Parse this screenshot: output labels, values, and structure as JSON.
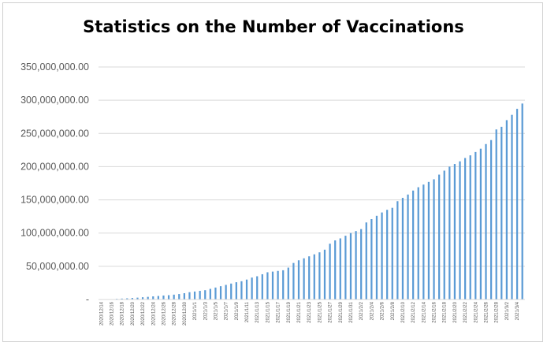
{
  "chart_data": {
    "type": "bar",
    "title": "Statistics on the Number of Vaccinations",
    "xlabel": "",
    "ylabel": "",
    "ylim": [
      0,
      350000000
    ],
    "yticks": [
      0,
      50000000,
      100000000,
      150000000,
      200000000,
      250000000,
      300000000,
      350000000
    ],
    "ytick_labels": [
      "-",
      "50,000,000.00",
      "100,000,000.00",
      "150,000,000.00",
      "200,000,000.00",
      "250,000,000.00",
      "300,000,000.00",
      "350,000,000.00"
    ],
    "grid": "horizontal",
    "legend": "none",
    "bar_color": "#5b9bd5",
    "categories": [
      "2020/12/14",
      "2020/12/15",
      "2020/12/16",
      "2020/12/17",
      "2020/12/18",
      "2020/12/19",
      "2020/12/20",
      "2020/12/21",
      "2020/12/22",
      "2020/12/23",
      "2020/12/24",
      "2020/12/25",
      "2020/12/26",
      "2020/12/27",
      "2020/12/28",
      "2020/12/29",
      "2020/12/30",
      "2020/12/31",
      "2021/1/1",
      "2021/1/2",
      "2021/1/3",
      "2021/1/4",
      "2021/1/5",
      "2021/1/6",
      "2021/1/7",
      "2021/1/8",
      "2021/1/9",
      "2021/1/10",
      "2021/1/11",
      "2021/1/12",
      "2021/1/13",
      "2021/1/14",
      "2021/1/15",
      "2021/1/16",
      "2021/1/17",
      "2021/1/18",
      "2021/1/19",
      "2021/1/20",
      "2021/1/21",
      "2021/1/22",
      "2021/1/23",
      "2021/1/24",
      "2021/1/25",
      "2021/1/26",
      "2021/1/27",
      "2021/1/28",
      "2021/1/29",
      "2021/1/30",
      "2021/1/31",
      "2021/2/1",
      "2021/2/2",
      "2021/2/3",
      "2021/2/4",
      "2021/2/5",
      "2021/2/6",
      "2021/2/7",
      "2021/2/8",
      "2021/2/9",
      "2021/2/10",
      "2021/2/11",
      "2021/2/12",
      "2021/2/13",
      "2021/2/14",
      "2021/2/15",
      "2021/2/16",
      "2021/2/17",
      "2021/2/18",
      "2021/2/19",
      "2021/2/20",
      "2021/2/21",
      "2021/2/22",
      "2021/2/23",
      "2021/2/24",
      "2021/2/25",
      "2021/2/26",
      "2021/2/27",
      "2021/2/28",
      "2021/3/1",
      "2021/3/2",
      "2021/3/3",
      "2021/3/4",
      "2021/3/5"
    ],
    "tick_labels": [
      "2020/12/14",
      "2020/12/16",
      "2020/12/18",
      "2020/12/20",
      "2020/12/22",
      "2020/12/24",
      "2020/12/26",
      "2020/12/28",
      "2020/12/30",
      "2021/1/1",
      "2021/1/3",
      "2021/1/5",
      "2021/1/7",
      "2021/1/9",
      "2021/1/11",
      "2021/1/13",
      "2021/1/15",
      "2021/1/17",
      "2021/1/19",
      "2021/1/21",
      "2021/1/23",
      "2021/1/25",
      "2021/1/27",
      "2021/1/29",
      "2021/1/31",
      "2021/2/2",
      "2021/2/4",
      "2021/2/6",
      "2021/2/8",
      "2021/2/10",
      "2021/2/12",
      "2021/2/14",
      "2021/2/16",
      "2021/2/18",
      "2021/2/20",
      "2021/2/22",
      "2021/2/24",
      "2021/2/26",
      "2021/2/28",
      "2021/3/2",
      "2021/3/4"
    ],
    "values": [
      100000,
      300000,
      600000,
      1000000,
      1400000,
      1800000,
      2300000,
      2800000,
      3400000,
      4000000,
      4700000,
      5300000,
      6000000,
      6500000,
      7300000,
      8200000,
      9500000,
      11000000,
      12000000,
      13000000,
      14000000,
      16000000,
      18000000,
      20000000,
      22000000,
      24000000,
      26000000,
      27500000,
      30000000,
      33000000,
      35000000,
      38000000,
      41000000,
      42000000,
      43000000,
      44000000,
      48000000,
      55000000,
      59000000,
      62000000,
      65000000,
      68000000,
      71000000,
      75000000,
      84000000,
      89000000,
      92000000,
      96000000,
      100000000,
      103000000,
      106000000,
      116000000,
      121000000,
      126000000,
      131000000,
      135000000,
      138000000,
      148000000,
      153000000,
      158000000,
      164000000,
      169000000,
      173000000,
      177000000,
      181000000,
      188000000,
      194000000,
      200000000,
      204000000,
      208000000,
      213000000,
      217000000,
      222000000,
      227000000,
      234000000,
      240000000,
      256000000,
      260000000,
      270000000,
      278000000,
      287000000,
      295000000
    ]
  }
}
